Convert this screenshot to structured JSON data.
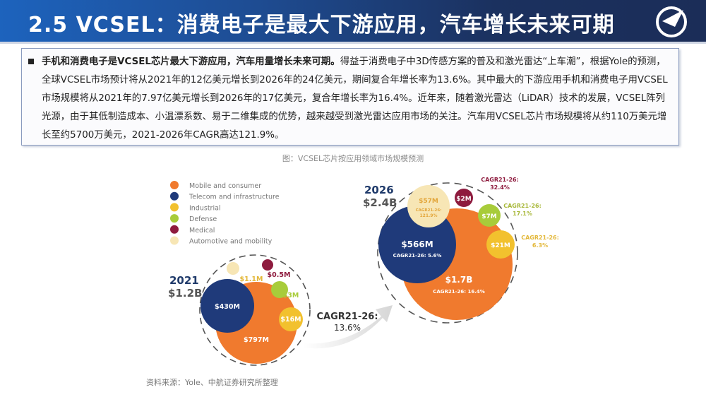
{
  "header": {
    "title": "2.5 VCSEL：消费电子是最大下游应用，汽车增长未来可期",
    "logo_text": "AVIC"
  },
  "summary": {
    "lead": "手机和消费电子是VCSEL芯片最大下游应用，汽车用量增长未来可期。",
    "body": "得益于消费电子中3D传感方案的普及和激光雷达“上车潮”，根据Yole的预测，全球VCSEL市场预计将从2021年的12亿美元增长到2026年的24亿美元，期间复合年增长率为13.6%。其中最大的下游应用手机和消费电子用VCSEL市场规模将从2021年的7.97亿美元增长到2026年的17亿美元，复合年增长率为16.4%。近年来，随着激光雷达（LiDAR）技术的发展，VCSEL阵列光源，由于其低制造成本、小温漂系数、易于二维集成的优势，越来越受到激光雷达应用市场的关注。汽车用VCSEL芯片市场规模将从约110万美元增长至约5700万美元，2021-2026年CAGR高达121.9%。"
  },
  "caption": "图：VCSEL芯片按应用领域市场规模预测",
  "source": "资料来源：Yole、中航证券研究所整理",
  "chart_data": {
    "type": "bubble",
    "legend": [
      {
        "name": "Mobile and consumer",
        "color": "#f07a2e"
      },
      {
        "name": "Telecom and infrastructure",
        "color": "#1f3a7a"
      },
      {
        "name": "Industrial",
        "color": "#f2c12e"
      },
      {
        "name": "Defense",
        "color": "#a8cc3a"
      },
      {
        "name": "Medical",
        "color": "#8e1b3e"
      },
      {
        "name": "Automotive and mobility",
        "color": "#f7e6b5"
      }
    ],
    "year2021": {
      "year": "2021",
      "total": "$1.2B",
      "values": {
        "mobile": "$797M",
        "telecom": "$430M",
        "industrial": "$16M",
        "defense": "$3M",
        "medical": "$0.5M",
        "automotive": "$1.1M"
      }
    },
    "year2026": {
      "year": "2026",
      "total": "$2.4B",
      "values": {
        "mobile": "$1.7B",
        "telecom": "$566M",
        "industrial": "$21M",
        "defense": "$7M",
        "medical": "$2M",
        "automotive": "$57M"
      },
      "cagr": {
        "mobile": "CAGR21-26: 16.4%",
        "telecom": "CAGR21-26: 5.6%",
        "industrial_label": "CAGR21-26:",
        "industrial": "6.3%",
        "defense_label": "CAGR21-26:",
        "defense": "17.1%",
        "medical_label": "CAGR21-26:",
        "medical": "32.4%",
        "automotive_label": "CAGR21-26:",
        "automotive": "121.9%"
      }
    },
    "overall_cagr": {
      "label": "CAGR21-26:",
      "value": "13.6%"
    }
  }
}
